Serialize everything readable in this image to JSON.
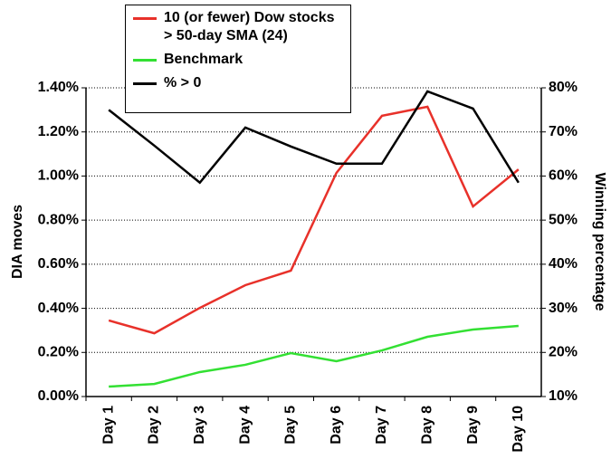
{
  "chart_data": {
    "type": "line",
    "categories": [
      "Day 1",
      "Day 2",
      "Day 3",
      "Day 4",
      "Day 5",
      "Day 6",
      "Day 7",
      "Day 8",
      "Day 9",
      "Day 10"
    ],
    "ylabel": "DIA moves",
    "y2label": "Winning percentage",
    "ylim": [
      0,
      1.4
    ],
    "yticks": [
      {
        "value": 0,
        "label": "0.00%"
      },
      {
        "value": 0.2,
        "label": "0.20%"
      },
      {
        "value": 0.4,
        "label": "0.40%"
      },
      {
        "value": 0.6,
        "label": "0.60%"
      },
      {
        "value": 0.8,
        "label": "0.80%"
      },
      {
        "value": 1.0,
        "label": "1.00%"
      },
      {
        "value": 1.2,
        "label": "1.20%"
      },
      {
        "value": 1.4,
        "label": "1.40%"
      }
    ],
    "y2lim": [
      10,
      80
    ],
    "y2ticks": [
      {
        "value": 10,
        "label": "10%"
      },
      {
        "value": 20,
        "label": "20%"
      },
      {
        "value": 30,
        "label": "30%"
      },
      {
        "value": 40,
        "label": "40%"
      },
      {
        "value": 50,
        "label": "50%"
      },
      {
        "value": 60,
        "label": "60%"
      },
      {
        "value": 70,
        "label": "70%"
      },
      {
        "value": 80,
        "label": "80%"
      }
    ],
    "grid": true,
    "legend": "top-left",
    "series": [
      {
        "name": "10 (or fewer) Dow stocks > 50-day SMA (24)",
        "color": "#e8312a",
        "values": [
          0.345,
          0.287,
          0.402,
          0.505,
          0.571,
          1.014,
          1.273,
          1.314,
          0.862,
          1.03
        ]
      },
      {
        "name": "Benchmark",
        "color": "#33e033",
        "values": [
          0.045,
          0.057,
          0.111,
          0.144,
          0.197,
          0.16,
          0.209,
          0.271,
          0.304,
          0.32
        ]
      },
      {
        "name": "% > 0",
        "color": "#000000",
        "axis": "y2",
        "values": [
          75,
          66.9,
          58.5,
          71,
          66.7,
          62.8,
          62.8,
          79.2,
          75.3,
          58.5
        ]
      }
    ]
  }
}
